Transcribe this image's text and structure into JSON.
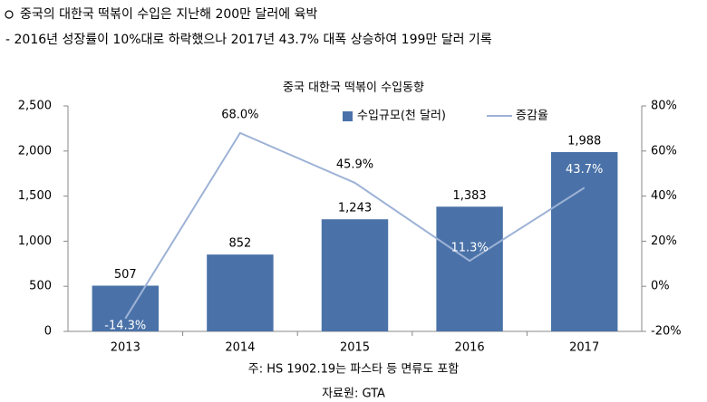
{
  "headline": "중국의 대한국 떡볶이 수입은 지난해 200만 달러에 육박",
  "subline": "- 2016년 성장률이 10%대로 하락했으나 2017년 43.7% 대폭 상승하여 199만 달러 기록",
  "chart_data": {
    "type": "bar",
    "title": "중국 대한국 떡볶이 수입동향",
    "categories": [
      "2013",
      "2014",
      "2015",
      "2016",
      "2017"
    ],
    "series": [
      {
        "name": "수입규모(천 달러)",
        "type": "bar",
        "color": "#4a72a8",
        "values": [
          507,
          852,
          1243,
          1383,
          1988
        ],
        "value_labels": [
          "507",
          "852",
          "1,243",
          "1,383",
          "1,988"
        ]
      },
      {
        "name": "증감율",
        "type": "line",
        "axis": "y2",
        "color": "#9db2d6",
        "values": [
          -14.3,
          68.0,
          45.9,
          11.3,
          43.7
        ],
        "value_labels": [
          "-14.3%",
          "68.0%",
          "45.9%",
          "11.3%",
          "43.7%"
        ]
      }
    ],
    "ylim": [
      0,
      2500
    ],
    "yticks": [
      0,
      500,
      {
        "value": 1000,
        "label": "1,000"
      },
      {
        "value": 1500,
        "label": "1,500"
      },
      {
        "value": 2000,
        "label": "2,000"
      },
      {
        "value": 2500,
        "label": "2,500"
      }
    ],
    "y2lim": [
      -20,
      80
    ],
    "y2ticks": [
      {
        "value": -20,
        "label": "-20%"
      },
      {
        "value": 0,
        "label": "0%"
      },
      {
        "value": 20,
        "label": "20%"
      },
      {
        "value": 40,
        "label": "40%"
      },
      {
        "value": 60,
        "label": "60%"
      },
      {
        "value": 80,
        "label": "80%"
      }
    ],
    "legend": "top-right",
    "note": "주: HS 1902.19는 파스타 등 면류도 포함",
    "source": "자료원: GTA"
  }
}
